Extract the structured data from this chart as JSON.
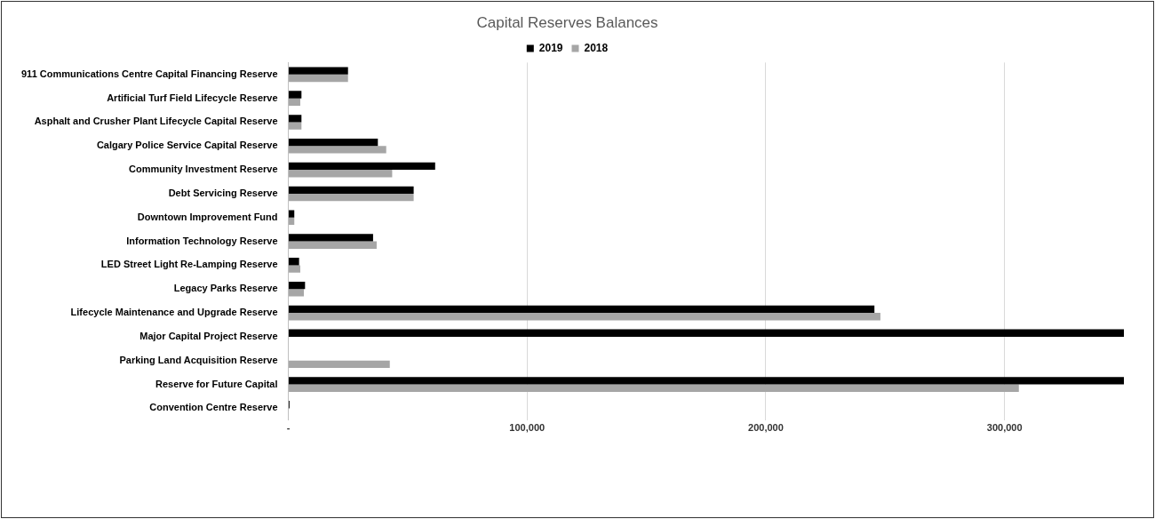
{
  "chart_data": {
    "type": "bar",
    "orientation": "horizontal",
    "title": "Capital Reserves Balances",
    "categories": [
      "911 Communications Centre Capital Financing Reserve",
      "Artificial Turf Field Lifecycle Reserve",
      "Asphalt and Crusher Plant Lifecycle Capital Reserve",
      "Calgary Police Service Capital Reserve",
      "Community Investment Reserve",
      "Debt Servicing Reserve",
      "Downtown Improvement Fund",
      "Information Technology Reserve",
      "LED Street Light Re-Lamping Reserve",
      "Legacy Parks Reserve",
      "Lifecycle Maintenance and Upgrade Reserve",
      "Major Capital Project Reserve",
      "Parking Land Acquisition Reserve",
      "Reserve for Future Capital",
      "Convention Centre Reserve"
    ],
    "series": [
      {
        "name": "2019",
        "color": "#000000",
        "values": [
          25000,
          5500,
          5500,
          37500,
          61500,
          52500,
          2500,
          35500,
          4500,
          7000,
          245500,
          350000,
          null,
          350000,
          500
        ]
      },
      {
        "name": "2018",
        "color": "#a6a6a6",
        "values": [
          25000,
          5000,
          5500,
          41000,
          43500,
          52500,
          2500,
          37000,
          5000,
          6500,
          248000,
          null,
          42500,
          306000,
          null
        ]
      }
    ],
    "xlim": [
      0,
      350000
    ],
    "xticks": [
      {
        "value": 0,
        "label": "-"
      },
      {
        "value": 100000,
        "label": "100,000"
      },
      {
        "value": 200000,
        "label": "200,000"
      },
      {
        "value": 300000,
        "label": "300,000"
      }
    ],
    "grid": "x",
    "legend": "top"
  }
}
